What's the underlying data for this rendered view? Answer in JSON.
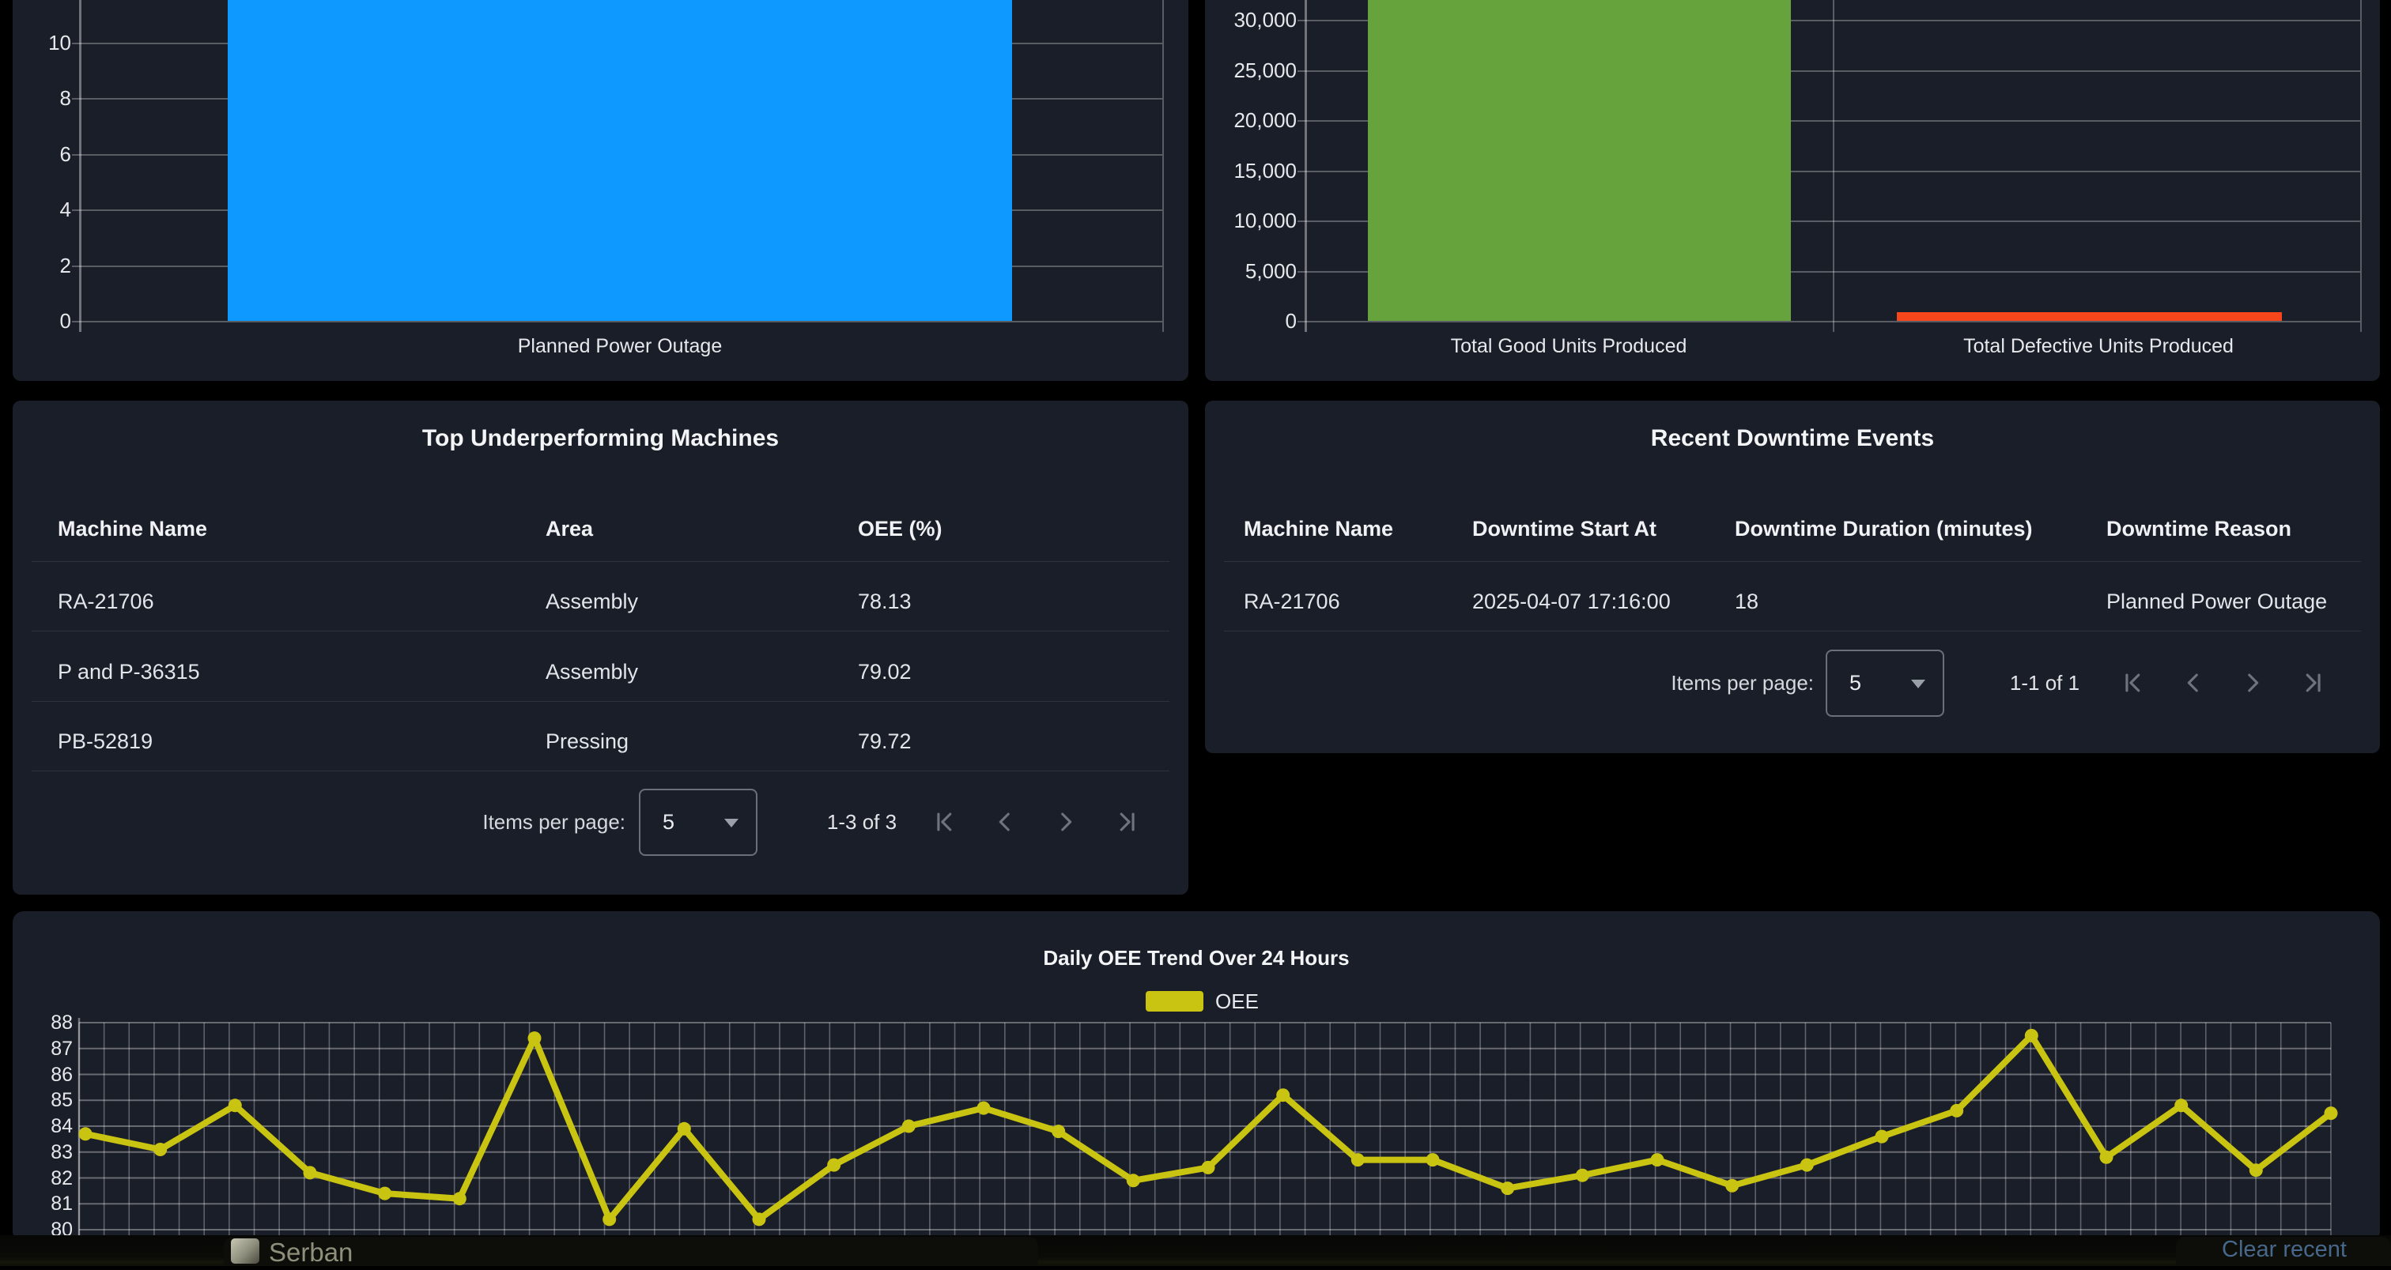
{
  "cards": {
    "downtime_chart": {
      "category": "Planned Power Outage",
      "y_ticks": [
        "0",
        "2",
        "4",
        "6",
        "8",
        "10"
      ],
      "bar_color": "#0d99ff",
      "value": 18
    },
    "units_chart": {
      "categories": [
        "Total Good Units Produced",
        "Total Defective Units Produced"
      ],
      "y_ticks": [
        "0",
        "5,000",
        "10,000",
        "15,000",
        "20,000",
        "25,000",
        "30,000"
      ],
      "bar_colors": [
        "#67a33c",
        "#f8461c"
      ],
      "values": [
        32000,
        870
      ]
    },
    "top_underperforming": {
      "title": "Top Underperforming Machines",
      "columns": [
        "Machine Name",
        "Area",
        "OEE (%)"
      ],
      "rows": [
        [
          "RA-21706",
          "Assembly",
          "78.13"
        ],
        [
          "P and P-36315",
          "Assembly",
          "79.02"
        ],
        [
          "PB-52819",
          "Pressing",
          "79.72"
        ]
      ],
      "paginator": {
        "label": "Items per page:",
        "page_size": "5",
        "range": "1-3 of 3"
      }
    },
    "recent_downtime": {
      "title": "Recent Downtime Events",
      "columns": [
        "Machine Name",
        "Downtime Start At",
        "Downtime Duration (minutes)",
        "Downtime Reason"
      ],
      "rows": [
        [
          "RA-21706",
          "2025-04-07 17:16:00",
          "18",
          "Planned Power Outage"
        ]
      ],
      "paginator": {
        "label": "Items per page:",
        "page_size": "5",
        "range": "1-1 of 1"
      }
    },
    "oee_trend": {
      "title": "Daily OEE Trend Over 24 Hours",
      "legend": "OEE",
      "line_color": "#c9c411",
      "y_ticks": [
        88,
        87,
        86,
        85,
        84,
        83,
        82,
        81,
        80
      ],
      "values": [
        83.7,
        83.1,
        84.8,
        82.2,
        81.4,
        81.2,
        87.4,
        80.4,
        83.9,
        80.4,
        82.5,
        84.0,
        84.7,
        83.8,
        81.9,
        82.4,
        85.2,
        82.7,
        82.7,
        81.6,
        82.1,
        82.7,
        81.7,
        82.5,
        83.6,
        84.6,
        87.5,
        82.8,
        84.8,
        82.3,
        84.5
      ]
    }
  },
  "chart_data": [
    {
      "type": "bar",
      "title": "",
      "categories": [
        "Planned Power Outage"
      ],
      "values": [
        18
      ],
      "ylabel": "",
      "y_ticks_visible": [
        0,
        2,
        4,
        6,
        8,
        10
      ],
      "note_color": "#0d99ff",
      "clipped_top": true
    },
    {
      "type": "bar",
      "title": "",
      "categories": [
        "Total Good Units Produced",
        "Total Defective Units Produced"
      ],
      "values": [
        32000,
        870
      ],
      "ylabel": "",
      "y_ticks_visible": [
        0,
        5000,
        10000,
        15000,
        20000,
        25000,
        30000
      ],
      "clipped_top": true
    },
    {
      "type": "line",
      "title": "Daily OEE Trend Over 24 Hours",
      "legend": [
        "OEE"
      ],
      "ylim": [
        80,
        88
      ],
      "x": "24-hour timeline (x tick labels cut off at screen bottom)",
      "values": [
        83.7,
        83.1,
        84.8,
        82.2,
        81.4,
        81.2,
        87.4,
        80.4,
        83.9,
        80.4,
        82.5,
        84.0,
        84.7,
        83.8,
        81.9,
        82.4,
        85.2,
        82.7,
        82.7,
        81.6,
        82.1,
        82.7,
        81.7,
        82.5,
        83.6,
        84.6,
        87.5,
        82.8,
        84.8,
        82.3,
        84.5
      ]
    }
  ],
  "taskbar": {
    "user": "Serban",
    "clear_recent": "Clear recent"
  }
}
